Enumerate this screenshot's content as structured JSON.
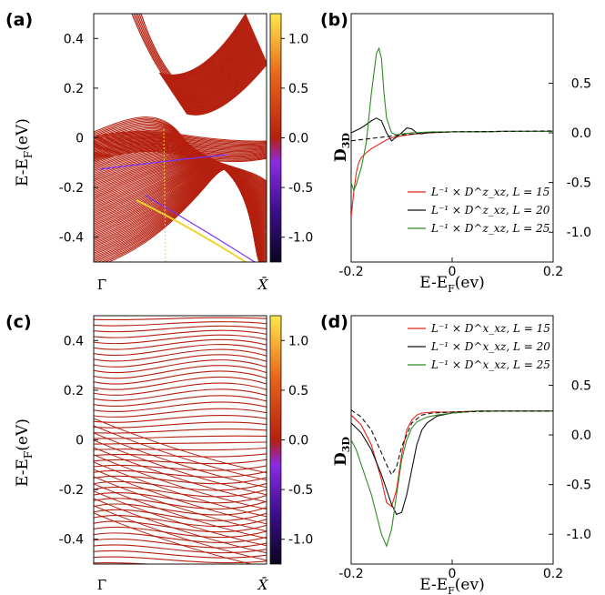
{
  "panels": {
    "a": {
      "label": "(a)"
    },
    "b": {
      "label": "(b)"
    },
    "c": {
      "label": "(c)"
    },
    "d": {
      "label": "(d)"
    }
  },
  "colors": {
    "band": "#b5200f",
    "edge_purple": "#7a32ff",
    "edge_yellow": "#f3d22a",
    "series_15": "#e8241a",
    "series_20": "#111111",
    "series_25": "#2e8b22"
  },
  "chart_data": [
    {
      "panel": "a",
      "type": "heatmap",
      "ylabel": "E-E_F(eV)",
      "ylabel_main": "E-E",
      "ylabel_sub": "F",
      "ylabel_tail": "(eV)",
      "ylim": [
        -0.5,
        0.5
      ],
      "yticks": [
        "0.4",
        "0.2",
        "0",
        "-0.2",
        "-0.4"
      ],
      "xticks": [
        "Γ̄",
        "X̄"
      ],
      "colorbar": {
        "ticks": [
          "1.0",
          "0.5",
          "0.0",
          "-0.5",
          "-1.0"
        ],
        "range": [
          -1.25,
          1.25
        ],
        "colormap": [
          "#0b0420",
          "#3a0e8a",
          "#8a2be2",
          "#b5200f",
          "#e8641a",
          "#ffe94a"
        ]
      }
    },
    {
      "panel": "b",
      "type": "line",
      "xlabel": "E-E_F(ev)",
      "xlabel_main": "E-E",
      "xlabel_sub": "F",
      "xlabel_tail": "(ev)",
      "ylabel": "D_3D",
      "ylabel_main": "D",
      "ylabel_sub": "3D",
      "xlim": [
        -0.2,
        0.2
      ],
      "xticks": [
        "-0.2",
        "0",
        "0.2"
      ],
      "yticks": [
        "0.5",
        "0.0",
        "-0.5",
        "-1.0"
      ],
      "ylim": [
        -1.3,
        1.2
      ],
      "legend": "bottom-right",
      "series": [
        {
          "name": "L⁻¹ × D^z_xz, L = 15",
          "color": "#e8241a",
          "x": [
            -0.2,
            -0.195,
            -0.19,
            -0.185,
            -0.18,
            -0.17,
            -0.16,
            -0.15,
            -0.14,
            -0.13,
            -0.12,
            -0.1,
            -0.08,
            -0.06,
            -0.04,
            0,
            0.05,
            0.1,
            0.15,
            0.2
          ],
          "y": [
            -0.85,
            -0.6,
            -0.4,
            -0.3,
            -0.25,
            -0.2,
            -0.16,
            -0.13,
            -0.1,
            -0.07,
            -0.05,
            -0.03,
            -0.015,
            -0.005,
            0,
            0.01,
            0.01,
            0.015,
            0.015,
            0.015
          ]
        },
        {
          "name": "L⁻¹ × D^z_xz, L = 20",
          "color": "#111111",
          "x": [
            -0.2,
            -0.18,
            -0.16,
            -0.15,
            -0.14,
            -0.13,
            -0.12,
            -0.11,
            -0.1,
            -0.09,
            -0.08,
            -0.07,
            -0.06,
            -0.05,
            -0.04,
            0,
            0.05,
            0.1,
            0.15,
            0.2
          ],
          "y": [
            0.0,
            0.05,
            0.12,
            0.15,
            0.12,
            0.0,
            -0.08,
            -0.04,
            0.0,
            0.05,
            0.04,
            0.0,
            -0.01,
            0.0,
            0.005,
            0.01,
            0.01,
            0.015,
            0.015,
            0.015
          ]
        },
        {
          "name": "L⁻¹ × D^z_xz, L = 25",
          "color": "#2e8b22",
          "x": [
            -0.2,
            -0.195,
            -0.19,
            -0.18,
            -0.17,
            -0.16,
            -0.155,
            -0.15,
            -0.145,
            -0.14,
            -0.135,
            -0.13,
            -0.12,
            -0.11,
            -0.1,
            -0.08,
            -0.06,
            -0.04,
            0,
            0.1,
            0.2
          ],
          "y": [
            -0.5,
            -0.58,
            -0.52,
            -0.35,
            -0.1,
            0.4,
            0.6,
            0.8,
            0.85,
            0.75,
            0.4,
            0.15,
            0.0,
            -0.02,
            -0.01,
            0.0,
            0.005,
            0.01,
            0.01,
            0.015,
            0.015
          ]
        },
        {
          "name": "",
          "color": "#111111",
          "dashed": true,
          "x": [
            -0.2,
            -0.15,
            -0.1,
            -0.05,
            0,
            0.1,
            0.2
          ],
          "y": [
            -0.08,
            -0.05,
            -0.02,
            0.0,
            0.01,
            0.015,
            0.02
          ]
        }
      ]
    },
    {
      "panel": "c",
      "type": "heatmap",
      "ylabel": "E-E_F(eV)",
      "ylabel_main": "E-E",
      "ylabel_sub": "F",
      "ylabel_tail": "(eV)",
      "ylim": [
        -0.5,
        0.5
      ],
      "yticks": [
        "0.4",
        "0.2",
        "0",
        "-0.2",
        "-0.4"
      ],
      "xticks": [
        "Γ̄",
        "X̄"
      ],
      "colorbar": {
        "ticks": [
          "1.0",
          "0.5",
          "0.0",
          "-0.5",
          "-1.0"
        ],
        "range": [
          -1.25,
          1.25
        ],
        "colormap": [
          "#0b0420",
          "#3a0e8a",
          "#8a2be2",
          "#b5200f",
          "#e8641a",
          "#ffe94a"
        ]
      }
    },
    {
      "panel": "d",
      "type": "line",
      "xlabel": "E-E_F(ev)",
      "xlabel_main": "E-E",
      "xlabel_sub": "F",
      "xlabel_tail": "(ev)",
      "ylabel": "D_3D",
      "ylabel_main": "D",
      "ylabel_sub": "3D",
      "xlim": [
        -0.2,
        0.2
      ],
      "xticks": [
        "-0.2",
        "0",
        "0.2"
      ],
      "yticks": [
        "0.5",
        "0.0",
        "-0.5",
        "-1.0"
      ],
      "ylim": [
        -1.3,
        1.2
      ],
      "legend": "top-right",
      "series": [
        {
          "name": "L⁻¹ × D^x_xz, L = 15",
          "color": "#e8241a",
          "x": [
            -0.2,
            -0.18,
            -0.16,
            -0.14,
            -0.13,
            -0.12,
            -0.11,
            -0.1,
            -0.09,
            -0.08,
            -0.07,
            -0.06,
            -0.04,
            0,
            0.05,
            0.1,
            0.2
          ],
          "y": [
            0.2,
            0.1,
            -0.1,
            -0.45,
            -0.68,
            -0.72,
            -0.55,
            -0.2,
            0.05,
            0.15,
            0.2,
            0.22,
            0.23,
            0.23,
            0.24,
            0.24,
            0.24
          ]
        },
        {
          "name": "L⁻¹ × D^x_xz, L = 20",
          "color": "#111111",
          "x": [
            -0.2,
            -0.18,
            -0.16,
            -0.14,
            -0.12,
            -0.11,
            -0.1,
            -0.09,
            -0.08,
            -0.07,
            -0.06,
            -0.05,
            -0.03,
            0,
            0.05,
            0.1,
            0.2
          ],
          "y": [
            0.12,
            0.02,
            -0.15,
            -0.4,
            -0.7,
            -0.8,
            -0.78,
            -0.6,
            -0.35,
            -0.1,
            0.05,
            0.12,
            0.19,
            0.22,
            0.24,
            0.24,
            0.24
          ]
        },
        {
          "name": "L⁻¹ × D^x_xz, L = 25",
          "color": "#2e8b22",
          "x": [
            -0.2,
            -0.19,
            -0.18,
            -0.16,
            -0.14,
            -0.13,
            -0.12,
            -0.11,
            -0.1,
            -0.09,
            -0.08,
            -0.07,
            -0.05,
            -0.03,
            0,
            0.05,
            0.1,
            0.2
          ],
          "y": [
            -0.05,
            -0.15,
            -0.3,
            -0.6,
            -1.0,
            -1.12,
            -0.95,
            -0.6,
            -0.25,
            -0.05,
            0.07,
            0.13,
            0.18,
            0.2,
            0.22,
            0.24,
            0.24,
            0.24
          ]
        },
        {
          "name": "",
          "color": "#111111",
          "dashed": true,
          "x": [
            -0.2,
            -0.18,
            -0.16,
            -0.14,
            -0.13,
            -0.12,
            -0.11,
            -0.1,
            -0.08,
            -0.06,
            -0.04,
            0,
            0.1,
            0.2
          ],
          "y": [
            0.25,
            0.18,
            0.05,
            -0.18,
            -0.3,
            -0.4,
            -0.32,
            -0.12,
            0.12,
            0.2,
            0.22,
            0.23,
            0.24,
            0.24
          ]
        }
      ]
    }
  ]
}
